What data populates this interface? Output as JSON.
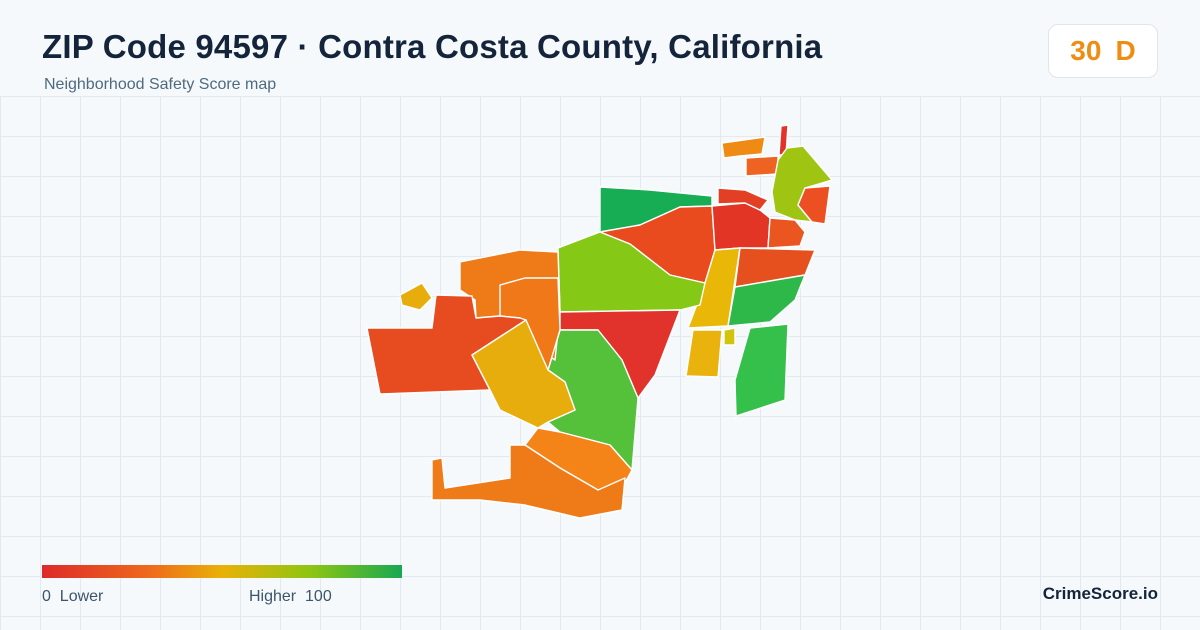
{
  "header": {
    "title": "ZIP Code 94597 · Contra Costa County, California",
    "subtitle": "Neighborhood Safety Score map"
  },
  "score": {
    "value": "30",
    "grade": "D",
    "color": "#ef8d12"
  },
  "legend": {
    "min_value": "0",
    "min_label": "Lower",
    "max_label": "Higher",
    "max_value": "100",
    "colors": [
      "#dd2a2a",
      "#ee6a1c",
      "#e9b108",
      "#8cc512",
      "#17a852"
    ]
  },
  "brand": "CrimeScore.io",
  "map": {
    "regions": [
      {
        "color": "#17ad55",
        "score": 90
      },
      {
        "color": "#e94b1f",
        "score": 22
      },
      {
        "color": "#e23526",
        "score": 12
      },
      {
        "color": "#ef8a14",
        "score": 32
      },
      {
        "color": "#e2322a",
        "score": 10
      },
      {
        "color": "#ee6222",
        "score": 25
      },
      {
        "color": "#9fc512",
        "score": 68
      },
      {
        "color": "#ec4f22",
        "score": 20
      },
      {
        "color": "#e33f25",
        "score": 16
      },
      {
        "color": "#ea5520",
        "score": 22
      },
      {
        "color": "#e9b708",
        "score": 50
      },
      {
        "color": "#e6501f",
        "score": 21
      },
      {
        "color": "#2fb84a",
        "score": 85
      },
      {
        "color": "#e9b20c",
        "score": 48
      },
      {
        "color": "#d2c40b",
        "score": 56
      },
      {
        "color": "#34c04b",
        "score": 84
      },
      {
        "color": "#86c816",
        "score": 72
      },
      {
        "color": "#e1332b",
        "score": 11
      },
      {
        "color": "#55c039",
        "score": 80
      },
      {
        "color": "#ef7a18",
        "score": 30
      },
      {
        "color": "#f07818",
        "score": 31
      },
      {
        "color": "#e7ad0c",
        "score": 47
      },
      {
        "color": "#e74b20",
        "score": 20
      },
      {
        "color": "#e7ad0c",
        "score": 46
      },
      {
        "color": "#f58418",
        "score": 33
      },
      {
        "color": "#ef7a18",
        "score": 30
      }
    ]
  }
}
